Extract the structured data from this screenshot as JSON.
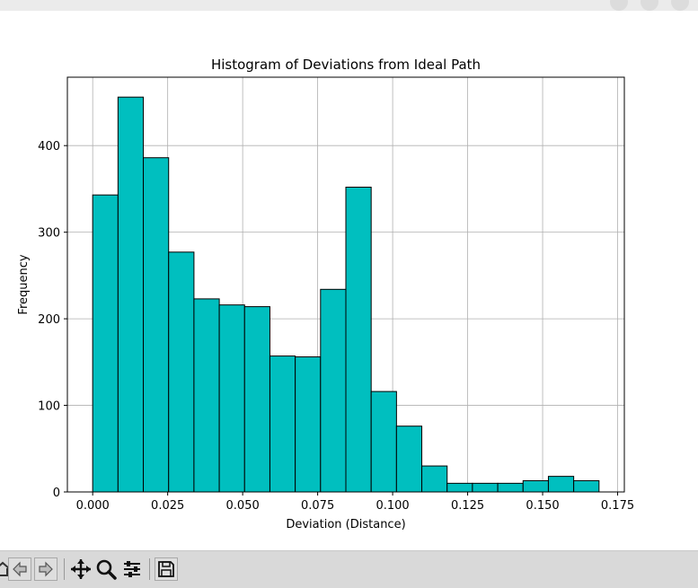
{
  "window": {},
  "chart_data": {
    "type": "bar",
    "title": "Histogram of Deviations from Ideal Path",
    "xlabel": "Deviation (Distance)",
    "ylabel": "Frequency",
    "bin_edges": [
      0.0,
      0.00844,
      0.01688,
      0.02532,
      0.03376,
      0.0422,
      0.05064,
      0.05908,
      0.06752,
      0.07596,
      0.0844,
      0.09284,
      0.10128,
      0.10972,
      0.11816,
      0.1266,
      0.13504,
      0.14348,
      0.15192,
      0.16036,
      0.1688
    ],
    "values": [
      343,
      456,
      386,
      277,
      223,
      216,
      214,
      157,
      156,
      234,
      352,
      116,
      76,
      30,
      10,
      10,
      10,
      13,
      18,
      13
    ],
    "xlim": [
      -0.00844,
      0.17724
    ],
    "ylim": [
      0,
      479
    ],
    "xticks": [
      "0.000",
      "0.025",
      "0.050",
      "0.075",
      "0.100",
      "0.125",
      "0.150",
      "0.175"
    ],
    "yticks": [
      "0",
      "100",
      "200",
      "300",
      "400"
    ],
    "bar_color": "#00bfbf",
    "edge_color": "#000000",
    "grid": true
  },
  "toolbar": {
    "buttons": [
      "home-icon",
      "back-icon",
      "forward-icon",
      "pan-icon",
      "zoom-icon",
      "configure-icon",
      "save-icon"
    ]
  }
}
